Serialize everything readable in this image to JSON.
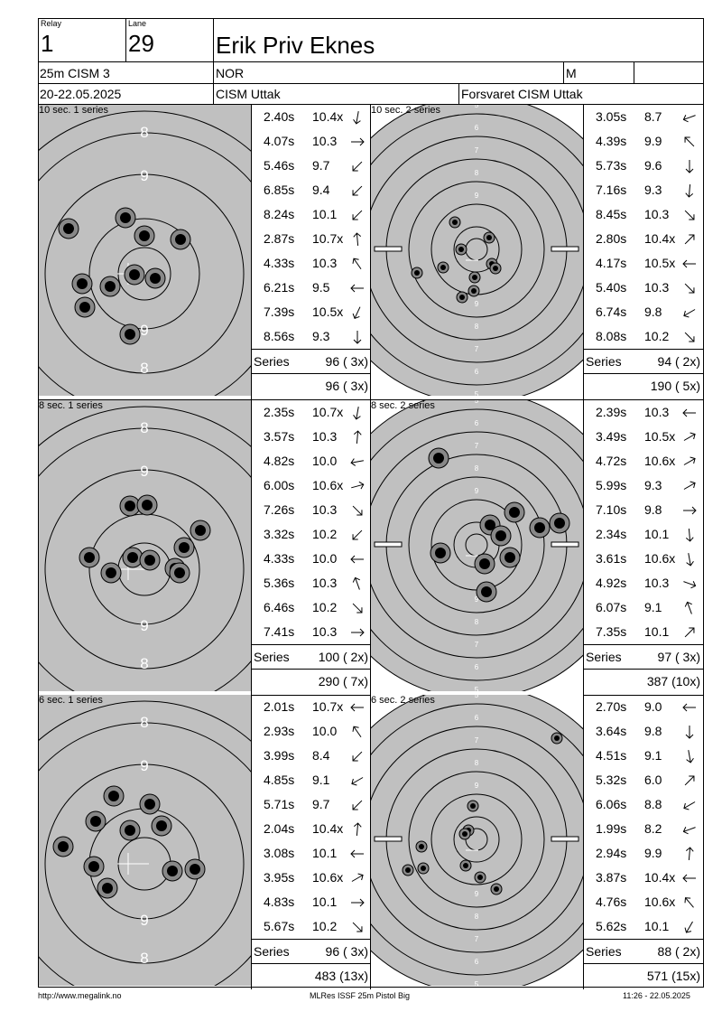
{
  "header": {
    "relay_label": "Relay",
    "relay": "1",
    "lane_label": "Lane",
    "lane": "29",
    "name": "Erik Priv Eknes",
    "event": "25m CISM 3",
    "nation": "NOR",
    "gender": "M",
    "dates": "20-22.05.2025",
    "competition": "CISM Uttak",
    "club": "Forsvaret CISM Uttak"
  },
  "blocks": [
    {
      "left": {
        "label": "10 sec. 1 series",
        "shots": [
          {
            "time": "2.40s",
            "score": "10.4x",
            "dir": 190
          },
          {
            "time": "4.07s",
            "score": "10.3",
            "dir": 90
          },
          {
            "time": "5.46s",
            "score": "9.7",
            "dir": 225
          },
          {
            "time": "6.85s",
            "score": "9.4",
            "dir": 225
          },
          {
            "time": "8.24s",
            "score": "10.1",
            "dir": 225
          },
          {
            "time": "2.87s",
            "score": "10.7x",
            "dir": 355
          },
          {
            "time": "4.33s",
            "score": "10.3",
            "dir": 325
          },
          {
            "time": "6.21s",
            "score": "9.5",
            "dir": 270
          },
          {
            "time": "7.39s",
            "score": "10.5x",
            "dir": 205
          },
          {
            "time": "8.56s",
            "score": "9.3",
            "dir": 180
          }
        ],
        "series_label": "Series",
        "series_total": "96 ( 3x)",
        "cumulative": "96 ( 3x)"
      },
      "right": {
        "label": "10 sec. 2 series",
        "shots": [
          {
            "time": "3.05s",
            "score": "8.7",
            "dir": 250
          },
          {
            "time": "4.39s",
            "score": "9.9",
            "dir": 315
          },
          {
            "time": "5.73s",
            "score": "9.6",
            "dir": 180
          },
          {
            "time": "7.16s",
            "score": "9.3",
            "dir": 185
          },
          {
            "time": "8.45s",
            "score": "10.3",
            "dir": 135
          },
          {
            "time": "2.80s",
            "score": "10.4x",
            "dir": 45
          },
          {
            "time": "4.17s",
            "score": "10.5x",
            "dir": 270
          },
          {
            "time": "5.40s",
            "score": "10.3",
            "dir": 135
          },
          {
            "time": "6.74s",
            "score": "9.8",
            "dir": 240
          },
          {
            "time": "8.08s",
            "score": "10.2",
            "dir": 135
          }
        ],
        "series_label": "Series",
        "series_total": "94 ( 2x)",
        "cumulative": "190 ( 5x)"
      }
    },
    {
      "left": {
        "label": "8 sec. 1 series",
        "shots": [
          {
            "time": "2.35s",
            "score": "10.7x",
            "dir": 190
          },
          {
            "time": "3.57s",
            "score": "10.3",
            "dir": 5
          },
          {
            "time": "4.82s",
            "score": "10.0",
            "dir": 260
          },
          {
            "time": "6.00s",
            "score": "10.6x",
            "dir": 75
          },
          {
            "time": "7.26s",
            "score": "10.3",
            "dir": 135
          },
          {
            "time": "3.32s",
            "score": "10.2",
            "dir": 225
          },
          {
            "time": "4.33s",
            "score": "10.0",
            "dir": 270
          },
          {
            "time": "5.36s",
            "score": "10.3",
            "dir": 340
          },
          {
            "time": "6.46s",
            "score": "10.2",
            "dir": 135
          },
          {
            "time": "7.41s",
            "score": "10.3",
            "dir": 90
          }
        ],
        "series_label": "Series",
        "series_total": "100 ( 2x)",
        "cumulative": "290 ( 7x)"
      },
      "right": {
        "label": "8 sec. 2 series",
        "shots": [
          {
            "time": "2.39s",
            "score": "10.3",
            "dir": 270
          },
          {
            "time": "3.49s",
            "score": "10.5x",
            "dir": 60
          },
          {
            "time": "4.72s",
            "score": "10.6x",
            "dir": 60
          },
          {
            "time": "5.99s",
            "score": "9.3",
            "dir": 60
          },
          {
            "time": "7.10s",
            "score": "9.8",
            "dir": 90
          },
          {
            "time": "2.34s",
            "score": "10.1",
            "dir": 175
          },
          {
            "time": "3.61s",
            "score": "10.6x",
            "dir": 170
          },
          {
            "time": "4.92s",
            "score": "10.3",
            "dir": 110
          },
          {
            "time": "6.07s",
            "score": "9.1",
            "dir": 340
          },
          {
            "time": "7.35s",
            "score": "10.1",
            "dir": 45
          }
        ],
        "series_label": "Series",
        "series_total": "97 ( 3x)",
        "cumulative": "387 (10x)"
      }
    },
    {
      "left": {
        "label": "6 sec. 1 series",
        "shots": [
          {
            "time": "2.01s",
            "score": "10.7x",
            "dir": 270
          },
          {
            "time": "2.93s",
            "score": "10.0",
            "dir": 325
          },
          {
            "time": "3.99s",
            "score": "8.4",
            "dir": 225
          },
          {
            "time": "4.85s",
            "score": "9.1",
            "dir": 240
          },
          {
            "time": "5.71s",
            "score": "9.7",
            "dir": 225
          },
          {
            "time": "2.04s",
            "score": "10.4x",
            "dir": 5
          },
          {
            "time": "3.08s",
            "score": "10.1",
            "dir": 270
          },
          {
            "time": "3.95s",
            "score": "10.6x",
            "dir": 60
          },
          {
            "time": "4.83s",
            "score": "10.1",
            "dir": 90
          },
          {
            "time": "5.67s",
            "score": "10.2",
            "dir": 135
          }
        ],
        "series_label": "Series",
        "series_total": "96 ( 3x)",
        "cumulative": "483 (13x)"
      },
      "right": {
        "label": "6 sec. 2 series",
        "shots": [
          {
            "time": "2.70s",
            "score": "9.0",
            "dir": 270
          },
          {
            "time": "3.64s",
            "score": "9.8",
            "dir": 180
          },
          {
            "time": "4.51s",
            "score": "9.1",
            "dir": 170
          },
          {
            "time": "5.32s",
            "score": "6.0",
            "dir": 45
          },
          {
            "time": "6.06s",
            "score": "8.8",
            "dir": 240
          },
          {
            "time": "1.99s",
            "score": "8.2",
            "dir": 250
          },
          {
            "time": "2.94s",
            "score": "9.9",
            "dir": 5
          },
          {
            "time": "3.87s",
            "score": "10.4x",
            "dir": 270
          },
          {
            "time": "4.76s",
            "score": "10.6x",
            "dir": 320
          },
          {
            "time": "5.62s",
            "score": "10.1",
            "dir": 210
          }
        ],
        "series_label": "Series",
        "series_total": "88 ( 2x)",
        "cumulative": "571 (15x)"
      }
    }
  ],
  "footer": {
    "url": "http://www.megalink.no",
    "software": "MLRes ISSF 25m Pistol Big",
    "timestamp": "11:26 - 22.05.2025"
  },
  "colors": {
    "target_bg": "#c0c0c0",
    "line": "#000000"
  }
}
